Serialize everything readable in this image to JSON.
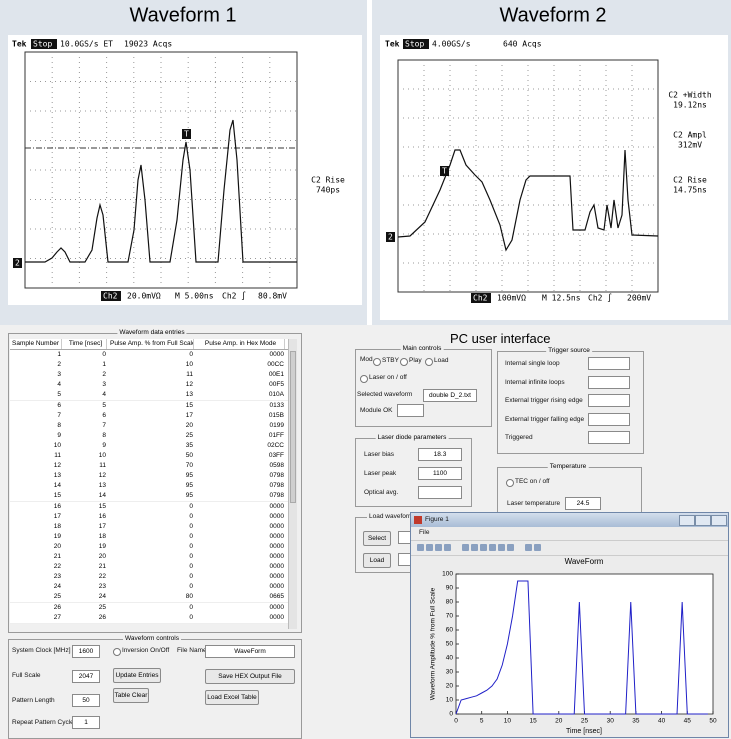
{
  "waveform1": {
    "title": "Waveform 1",
    "tek": "Tek",
    "state": "Stop",
    "rate": "10.0GS/s ET",
    "acqs": "19023 Acqs",
    "trigger_marker": "T",
    "channel_marker": "2",
    "measurements": [
      {
        "name": "C2 Rise",
        "value": "740ps"
      }
    ],
    "footer": {
      "channel": "Ch2",
      "scale": "20.0mVΩ",
      "time": "M 5.00ns",
      "trigger": "Ch2 ∫",
      "level": "80.8mV"
    }
  },
  "waveform2": {
    "title": "Waveform 2",
    "tek": "Tek",
    "state": "Stop",
    "rate": "4.00GS/s",
    "acqs": "640 Acqs",
    "trigger_marker": "T",
    "channel_marker": "2",
    "measurements": [
      {
        "name": "C2 +Width",
        "value": "19.12ns"
      },
      {
        "name": "C2 Ampl",
        "value": "312mV"
      },
      {
        "name": "C2 Rise",
        "value": "14.75ns"
      }
    ],
    "footer": {
      "channel": "Ch2",
      "scale": "100mVΩ",
      "time": "M 12.5ns",
      "trigger": "Ch2 ∫",
      "level": "200mV"
    }
  },
  "gui": {
    "title": "PC user interface",
    "table": {
      "title": "Waveform data entries",
      "columns": [
        "Sample Number",
        "Time [nsec]",
        "Pulse Amp. % from Full Scale",
        "Pulse Amp. in Hex Mode"
      ],
      "rows": [
        [
          1,
          0,
          0,
          "0000"
        ],
        [
          2,
          1,
          10,
          "00CC"
        ],
        [
          3,
          2,
          11,
          "00E1"
        ],
        [
          4,
          3,
          12,
          "00F5"
        ],
        [
          5,
          4,
          13,
          "010A"
        ],
        [
          6,
          5,
          15,
          "0133"
        ],
        [
          7,
          6,
          17,
          "015B"
        ],
        [
          8,
          7,
          20,
          "0199"
        ],
        [
          9,
          8,
          25,
          "01FF"
        ],
        [
          10,
          9,
          35,
          "02CC"
        ],
        [
          11,
          10,
          50,
          "03FF"
        ],
        [
          12,
          11,
          70,
          "0598"
        ],
        [
          13,
          12,
          95,
          "0798"
        ],
        [
          14,
          13,
          95,
          "0798"
        ],
        [
          15,
          14,
          95,
          "0798"
        ],
        [
          16,
          15,
          0,
          "0000"
        ],
        [
          17,
          16,
          0,
          "0000"
        ],
        [
          18,
          17,
          0,
          "0000"
        ],
        [
          19,
          18,
          0,
          "0000"
        ],
        [
          20,
          19,
          0,
          "0000"
        ],
        [
          21,
          20,
          0,
          "0000"
        ],
        [
          22,
          21,
          0,
          "0000"
        ],
        [
          23,
          22,
          0,
          "0000"
        ],
        [
          24,
          23,
          0,
          "0000"
        ],
        [
          25,
          24,
          80,
          "0665"
        ],
        [
          26,
          25,
          0,
          "0000"
        ],
        [
          27,
          26,
          0,
          "0000"
        ]
      ]
    },
    "waveform_controls": {
      "title": "Waveform controls",
      "system_clock_label": "System Clock [MHz]",
      "system_clock": 1600,
      "full_scale_label": "Full Scale",
      "full_scale": 2047,
      "pattern_length_label": "Pattern Length",
      "pattern_length": 50,
      "repeat_label": "Repeat Pattern Cycles",
      "repeat": 1,
      "inversion": "Inversion On/Off",
      "update": "Update Entries",
      "clear": "Table Clear",
      "file_name_label": "File Name",
      "file_name": "WaveForm",
      "save": "Save HEX Output File",
      "load_excel": "Load Excel Table"
    },
    "main_controls": {
      "title": "Main controls",
      "mod": "Mod",
      "stby": "STBY",
      "play": "Play",
      "load": "Load",
      "laser": "Laser on / off",
      "selected_label": "Selected waveform",
      "selected": "double D_2.txt",
      "module_ok": "Module OK"
    },
    "trigger_source": {
      "title": "Trigger source",
      "items": [
        "Internal single loop",
        "Internal infinite loops",
        "External trigger rising edge",
        "External trigger falling edge",
        "Triggered"
      ]
    },
    "laser_diode": {
      "title": "Laser diode parameters",
      "bias_label": "Laser bias",
      "bias": 18.3,
      "peak_label": "Laser peak",
      "peak": 1100,
      "optical_label": "Optical avg."
    },
    "temperature": {
      "title": "Temperature",
      "tec": "TEC on / off",
      "temp_label": "Laser temperature",
      "temp": 24.5
    },
    "load_waveform": {
      "title": "Load waveform",
      "select": "Select",
      "load": "Load"
    }
  },
  "figure": {
    "title": "Figure 1",
    "menu": "File"
  },
  "chart_data": {
    "type": "line",
    "title": "WaveForm",
    "x_label": "Time [nsec]",
    "y_label": "Waveform Amplitude % from Full Scale",
    "x": [
      0,
      1,
      2,
      3,
      4,
      5,
      6,
      7,
      8,
      9,
      10,
      11,
      12,
      13,
      14,
      15,
      16,
      17,
      18,
      19,
      20,
      21,
      22,
      23,
      24,
      25,
      26,
      27,
      28,
      29,
      30,
      31,
      32,
      33,
      34,
      35,
      36,
      37,
      38,
      39,
      40,
      41,
      42,
      43,
      44,
      45,
      46,
      47,
      48,
      49
    ],
    "values": [
      0,
      10,
      11,
      12,
      13,
      15,
      17,
      20,
      25,
      35,
      50,
      70,
      95,
      95,
      95,
      0,
      0,
      0,
      0,
      0,
      0,
      0,
      0,
      0,
      80,
      0,
      0,
      0,
      0,
      0,
      0,
      0,
      0,
      0,
      80,
      0,
      0,
      0,
      0,
      0,
      0,
      0,
      0,
      0,
      80,
      0,
      0,
      0,
      0,
      0
    ],
    "color": "#2020c8",
    "xlim": [
      0,
      50
    ],
    "ylim": [
      0,
      100
    ],
    "xticks": [
      0,
      5,
      10,
      15,
      20,
      25,
      30,
      35,
      40,
      45,
      50
    ],
    "yticks": [
      0,
      10,
      20,
      30,
      40,
      50,
      60,
      70,
      80,
      90,
      100
    ],
    "grid": false
  }
}
